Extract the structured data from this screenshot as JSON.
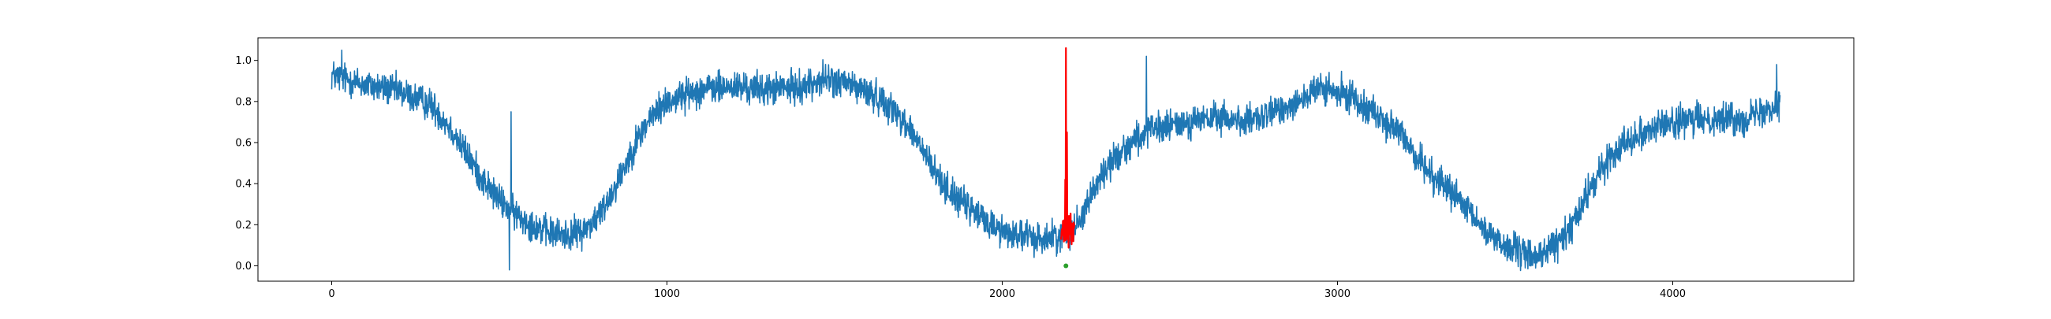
{
  "chart_data": {
    "type": "line",
    "title": "",
    "xlabel": "",
    "ylabel": "",
    "xlim": [
      -220,
      4540
    ],
    "ylim": [
      -0.075,
      1.11
    ],
    "grid": false,
    "x_ticks": [
      {
        "value": 0,
        "label": "0"
      },
      {
        "value": 1000,
        "label": "1000"
      },
      {
        "value": 2000,
        "label": "2000"
      },
      {
        "value": 3000,
        "label": "3000"
      },
      {
        "value": 4000,
        "label": "4000"
      }
    ],
    "y_ticks": [
      {
        "value": 0.0,
        "label": "0.0"
      },
      {
        "value": 0.2,
        "label": "0.2"
      },
      {
        "value": 0.4,
        "label": "0.4"
      },
      {
        "value": 0.6,
        "label": "0.6"
      },
      {
        "value": 0.8,
        "label": "0.8"
      },
      {
        "value": 1.0,
        "label": "1.0"
      }
    ],
    "series": [
      {
        "color": "#1f77b4",
        "x_range": [
          0,
          4320
        ],
        "points": 4321,
        "noise": 0.055,
        "trend": [
          [
            0,
            0.93
          ],
          [
            100,
            0.88
          ],
          [
            200,
            0.85
          ],
          [
            300,
            0.78
          ],
          [
            350,
            0.68
          ],
          [
            400,
            0.55
          ],
          [
            450,
            0.42
          ],
          [
            500,
            0.32
          ],
          [
            550,
            0.25
          ],
          [
            600,
            0.2
          ],
          [
            650,
            0.16
          ],
          [
            700,
            0.15
          ],
          [
            750,
            0.17
          ],
          [
            800,
            0.25
          ],
          [
            850,
            0.4
          ],
          [
            900,
            0.58
          ],
          [
            950,
            0.72
          ],
          [
            1000,
            0.8
          ],
          [
            1100,
            0.86
          ],
          [
            1200,
            0.87
          ],
          [
            1300,
            0.86
          ],
          [
            1400,
            0.87
          ],
          [
            1470,
            0.91
          ],
          [
            1550,
            0.88
          ],
          [
            1650,
            0.8
          ],
          [
            1700,
            0.72
          ],
          [
            1750,
            0.6
          ],
          [
            1800,
            0.45
          ],
          [
            1850,
            0.35
          ],
          [
            1900,
            0.28
          ],
          [
            1950,
            0.22
          ],
          [
            2000,
            0.17
          ],
          [
            2050,
            0.15
          ],
          [
            2100,
            0.13
          ],
          [
            2150,
            0.14
          ],
          [
            2180,
            0.15
          ],
          [
            2200,
            0.16
          ],
          [
            2230,
            0.22
          ],
          [
            2260,
            0.33
          ],
          [
            2300,
            0.45
          ],
          [
            2350,
            0.55
          ],
          [
            2400,
            0.62
          ],
          [
            2450,
            0.66
          ],
          [
            2550,
            0.7
          ],
          [
            2650,
            0.72
          ],
          [
            2750,
            0.7
          ],
          [
            2850,
            0.78
          ],
          [
            2950,
            0.86
          ],
          [
            3050,
            0.82
          ],
          [
            3100,
            0.76
          ],
          [
            3200,
            0.62
          ],
          [
            3250,
            0.5
          ],
          [
            3300,
            0.42
          ],
          [
            3350,
            0.34
          ],
          [
            3400,
            0.24
          ],
          [
            3450,
            0.16
          ],
          [
            3500,
            0.1
          ],
          [
            3550,
            0.06
          ],
          [
            3600,
            0.05
          ],
          [
            3650,
            0.1
          ],
          [
            3700,
            0.2
          ],
          [
            3750,
            0.36
          ],
          [
            3800,
            0.5
          ],
          [
            3850,
            0.6
          ],
          [
            3950,
            0.68
          ],
          [
            4050,
            0.71
          ],
          [
            4150,
            0.72
          ],
          [
            4200,
            0.71
          ],
          [
            4250,
            0.74
          ],
          [
            4320,
            0.8
          ]
        ],
        "spikes": [
          [
            30,
            1.05
          ],
          [
            530,
            -0.02
          ],
          [
            535,
            0.75
          ],
          [
            2430,
            1.02
          ],
          [
            3560,
            -0.01
          ],
          [
            4310,
            0.98
          ]
        ]
      },
      {
        "color": "#ff0000",
        "x_range": [
          2175,
          2215
        ],
        "points": 41,
        "noise": 0.055,
        "trend": [
          [
            2175,
            0.15
          ],
          [
            2195,
            0.16
          ],
          [
            2215,
            0.17
          ]
        ],
        "spikes": [
          [
            2188,
            0.42
          ],
          [
            2190,
            1.06
          ],
          [
            2193,
            0.65
          ]
        ]
      }
    ],
    "markers": [
      {
        "x": 2190,
        "y": 0.0,
        "color": "#2ca02c"
      }
    ]
  }
}
